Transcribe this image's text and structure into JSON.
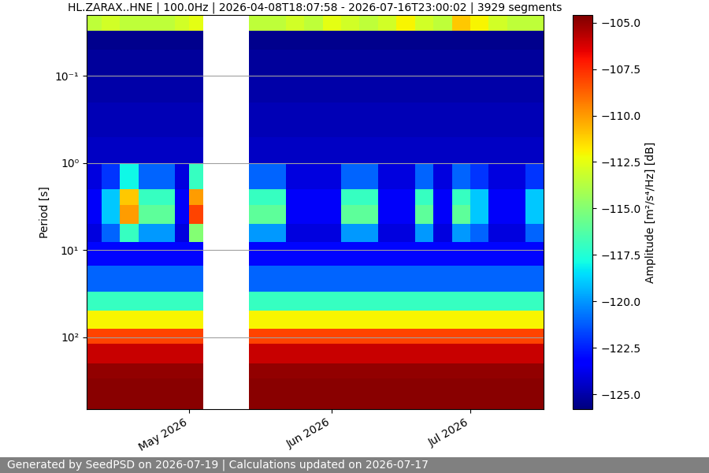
{
  "chart_data": {
    "type": "heatmap",
    "title": "HL.ZARAX..HNE | 100.0Hz | 2026-04-08T18:07:58 - 2026-07-16T23:00:02 | 3929 segments",
    "y_label": "Period [s]",
    "footer": "Generated by SeedPSD on 2026-07-19 | Calculations updated on 2026-07-17",
    "color": "jet",
    "log": "y",
    "grid": "y",
    "xlim": [
      "2026-04-08T18:07:58",
      "2026-07-16T23:00:02"
    ],
    "xticks": [
      {
        "value": "2026-05-01",
        "label": "May 2026"
      },
      {
        "value": "2026-06-01",
        "label": "Jun 2026"
      },
      {
        "value": "2026-07-01",
        "label": "Jul 2026"
      }
    ],
    "ylim": [
      671,
      0.02
    ],
    "yticks": [
      {
        "value": 0.1,
        "label": "10⁻¹"
      },
      {
        "value": 1,
        "label": "10⁰"
      },
      {
        "value": 10,
        "label": "10¹"
      },
      {
        "value": 100,
        "label": "10²"
      }
    ],
    "x_edges": [
      "2026-04-08T18:07:58",
      "2026-04-12",
      "2026-04-16",
      "2026-04-20",
      "2026-04-24",
      "2026-04-28",
      "2026-05-01",
      "2026-05-04",
      "2026-05-14",
      "2026-05-18",
      "2026-05-22",
      "2026-05-26",
      "2026-05-30",
      "2026-06-03",
      "2026-06-07",
      "2026-06-11",
      "2026-06-15",
      "2026-06-19",
      "2026-06-23",
      "2026-06-27",
      "2026-07-01",
      "2026-07-05",
      "2026-07-09",
      "2026-07-13",
      "2026-07-16T23:00:02"
    ],
    "y_edges": [
      0.02,
      0.03,
      0.05,
      0.1,
      0.2,
      0.5,
      1,
      2,
      3,
      5,
      8,
      15,
      30,
      50,
      80,
      120,
      200,
      300,
      671
    ],
    "cells": [
      [
        -113.5,
        -113,
        -113.5,
        -113.5,
        -113.5,
        -113,
        -112.5,
        null,
        -113.5,
        -113.5,
        -113,
        -113.5,
        -112.5,
        -113,
        -113.5,
        -113,
        -112,
        -113,
        -113.5,
        -111,
        -112,
        -113,
        -113.5,
        -113.5
      ],
      [
        -125.5,
        -125.5,
        -125.5,
        -125.5,
        -125.5,
        -125.5,
        -125.5,
        null,
        -125.5,
        -125.5,
        -125.5,
        -125.5,
        -125.5,
        -125.5,
        -125.5,
        -125.5,
        -125.5,
        -125.5,
        -125.5,
        -125.5,
        -125.5,
        -125.5,
        -125.5,
        -125.5
      ],
      [
        -125.3,
        -125.3,
        -125.3,
        -125.3,
        -125.3,
        -125.3,
        -125.3,
        null,
        -125.3,
        -125.3,
        -125.3,
        -125.3,
        -125.3,
        -125.3,
        -125.3,
        -125.3,
        -125.3,
        -125.3,
        -125.3,
        -125.3,
        -125.3,
        -125.3,
        -125.3,
        -125.3
      ],
      [
        -125,
        -125,
        -125,
        -125,
        -125,
        -125,
        -125,
        null,
        -125,
        -125,
        -125,
        -125,
        -125,
        -125,
        -125,
        -125,
        -125,
        -125,
        -125,
        -125,
        -125,
        -125,
        -125,
        -125
      ],
      [
        -124.8,
        -124.8,
        -124.8,
        -124.8,
        -124.8,
        -124.8,
        -124.8,
        null,
        -124.8,
        -124.8,
        -124.8,
        -124.8,
        -124.8,
        -124.8,
        -124.8,
        -124.8,
        -124.8,
        -124.8,
        -124.8,
        -124.8,
        -124.8,
        -124.8,
        -124.8,
        -124.8
      ],
      [
        -124.5,
        -124.5,
        -124.5,
        -124.5,
        -124.5,
        -124.5,
        -124.5,
        null,
        -124.5,
        -124.5,
        -124.5,
        -124.5,
        -124.5,
        -124.5,
        -124.5,
        -124.5,
        -124.5,
        -124.5,
        -124.5,
        -124.5,
        -124.5,
        -124.5,
        -124.5,
        -124.5
      ],
      [
        -124,
        -122,
        -118,
        -121,
        -121,
        -124,
        -117,
        null,
        -121,
        -121,
        -124,
        -124,
        -124,
        -121,
        -121,
        -124,
        -124,
        -121,
        -124,
        -121,
        -122,
        -124,
        -124,
        -122
      ],
      [
        -123.5,
        -119,
        -111,
        -117,
        -117,
        -123.5,
        -110,
        null,
        -117,
        -117,
        -123.5,
        -123.5,
        -123.5,
        -117,
        -117,
        -123.5,
        -123.5,
        -117,
        -123.5,
        -117,
        -119,
        -123.5,
        -123.5,
        -119
      ],
      [
        -123.5,
        -119,
        -110,
        -116,
        -116,
        -123.5,
        -108,
        null,
        -116,
        -116,
        -123.5,
        -123.5,
        -123.5,
        -116,
        -116,
        -123.5,
        -123.5,
        -116,
        -123.5,
        -116,
        -119,
        -123.5,
        -123.5,
        -119
      ],
      [
        -124,
        -121,
        -117,
        -120,
        -120,
        -124,
        -115,
        null,
        -120,
        -120,
        -124,
        -124,
        -124,
        -120,
        -120,
        -124,
        -124,
        -120,
        -124,
        -120,
        -121,
        -124,
        -124,
        -121
      ],
      [
        -123,
        -123,
        -123,
        -123,
        -123,
        -123,
        -123,
        null,
        -123,
        -123,
        -123,
        -123,
        -123,
        -123,
        -123,
        -123,
        -123,
        -123,
        -123,
        -123,
        -123,
        -123,
        -123,
        -123
      ],
      [
        -121,
        -121,
        -121,
        -121,
        -121,
        -121,
        -121,
        null,
        -121,
        -121,
        -121,
        -121,
        -121,
        -121,
        -121,
        -121,
        -121,
        -121,
        -121,
        -121,
        -121,
        -121,
        -121,
        -121
      ],
      [
        -117,
        -117,
        -117,
        -117,
        -117,
        -117,
        -117,
        null,
        -117,
        -117,
        -117,
        -117,
        -117,
        -117,
        -117,
        -117,
        -117,
        -117,
        -117,
        -117,
        -117,
        -117,
        -117,
        -117
      ],
      [
        -112,
        -112,
        -112,
        -112,
        -112,
        -112,
        -112,
        null,
        -112,
        -112,
        -112,
        -112,
        -112,
        -112,
        -112,
        -112,
        -112,
        -112,
        -112,
        -112,
        -112,
        -112,
        -112,
        -112
      ],
      [
        -108,
        -108,
        -108,
        -108,
        -108,
        -108,
        -108,
        null,
        -108,
        -108,
        -108,
        -108,
        -108,
        -108,
        -108,
        -108,
        -108,
        -108,
        -108,
        -108,
        -108,
        -108,
        -108,
        -108
      ],
      [
        -106,
        -106,
        -106,
        -106,
        -106,
        -106,
        -106,
        null,
        -106,
        -106,
        -106,
        -106,
        -106,
        -106,
        -106,
        -106,
        -106,
        -106,
        -106,
        -106,
        -106,
        -106,
        -106,
        -106
      ],
      [
        -105,
        -105,
        -105,
        -105,
        -105,
        -105,
        -105,
        null,
        -105,
        -105,
        -105,
        -105,
        -105,
        -105,
        -105,
        -105,
        -105,
        -105,
        -105,
        -105,
        -105,
        -105,
        -105,
        -105
      ],
      [
        -104.8,
        -104.8,
        -104.8,
        -104.8,
        -104.8,
        -104.8,
        -104.8,
        null,
        -104.8,
        -104.8,
        -104.8,
        -104.8,
        -104.8,
        -104.8,
        -104.8,
        -104.8,
        -104.8,
        -104.8,
        -104.8,
        -104.8,
        -104.8,
        -104.8,
        -104.8,
        -104.8
      ]
    ],
    "colorbar_label": "Amplitude [m²/s⁴/Hz] [dB]",
    "colorbar_range": [
      -125.8,
      -104.6
    ],
    "colorbar_ticks": [
      {
        "value": -125,
        "label": "−125.0"
      },
      {
        "value": -122.5,
        "label": "−122.5"
      },
      {
        "value": -120,
        "label": "−120.0"
      },
      {
        "value": -117.5,
        "label": "−117.5"
      },
      {
        "value": -115,
        "label": "−115.0"
      },
      {
        "value": -112.5,
        "label": "−112.5"
      },
      {
        "value": -110,
        "label": "−110.0"
      },
      {
        "value": -107.5,
        "label": "−107.5"
      },
      {
        "value": -105,
        "label": "−105.0"
      }
    ]
  }
}
